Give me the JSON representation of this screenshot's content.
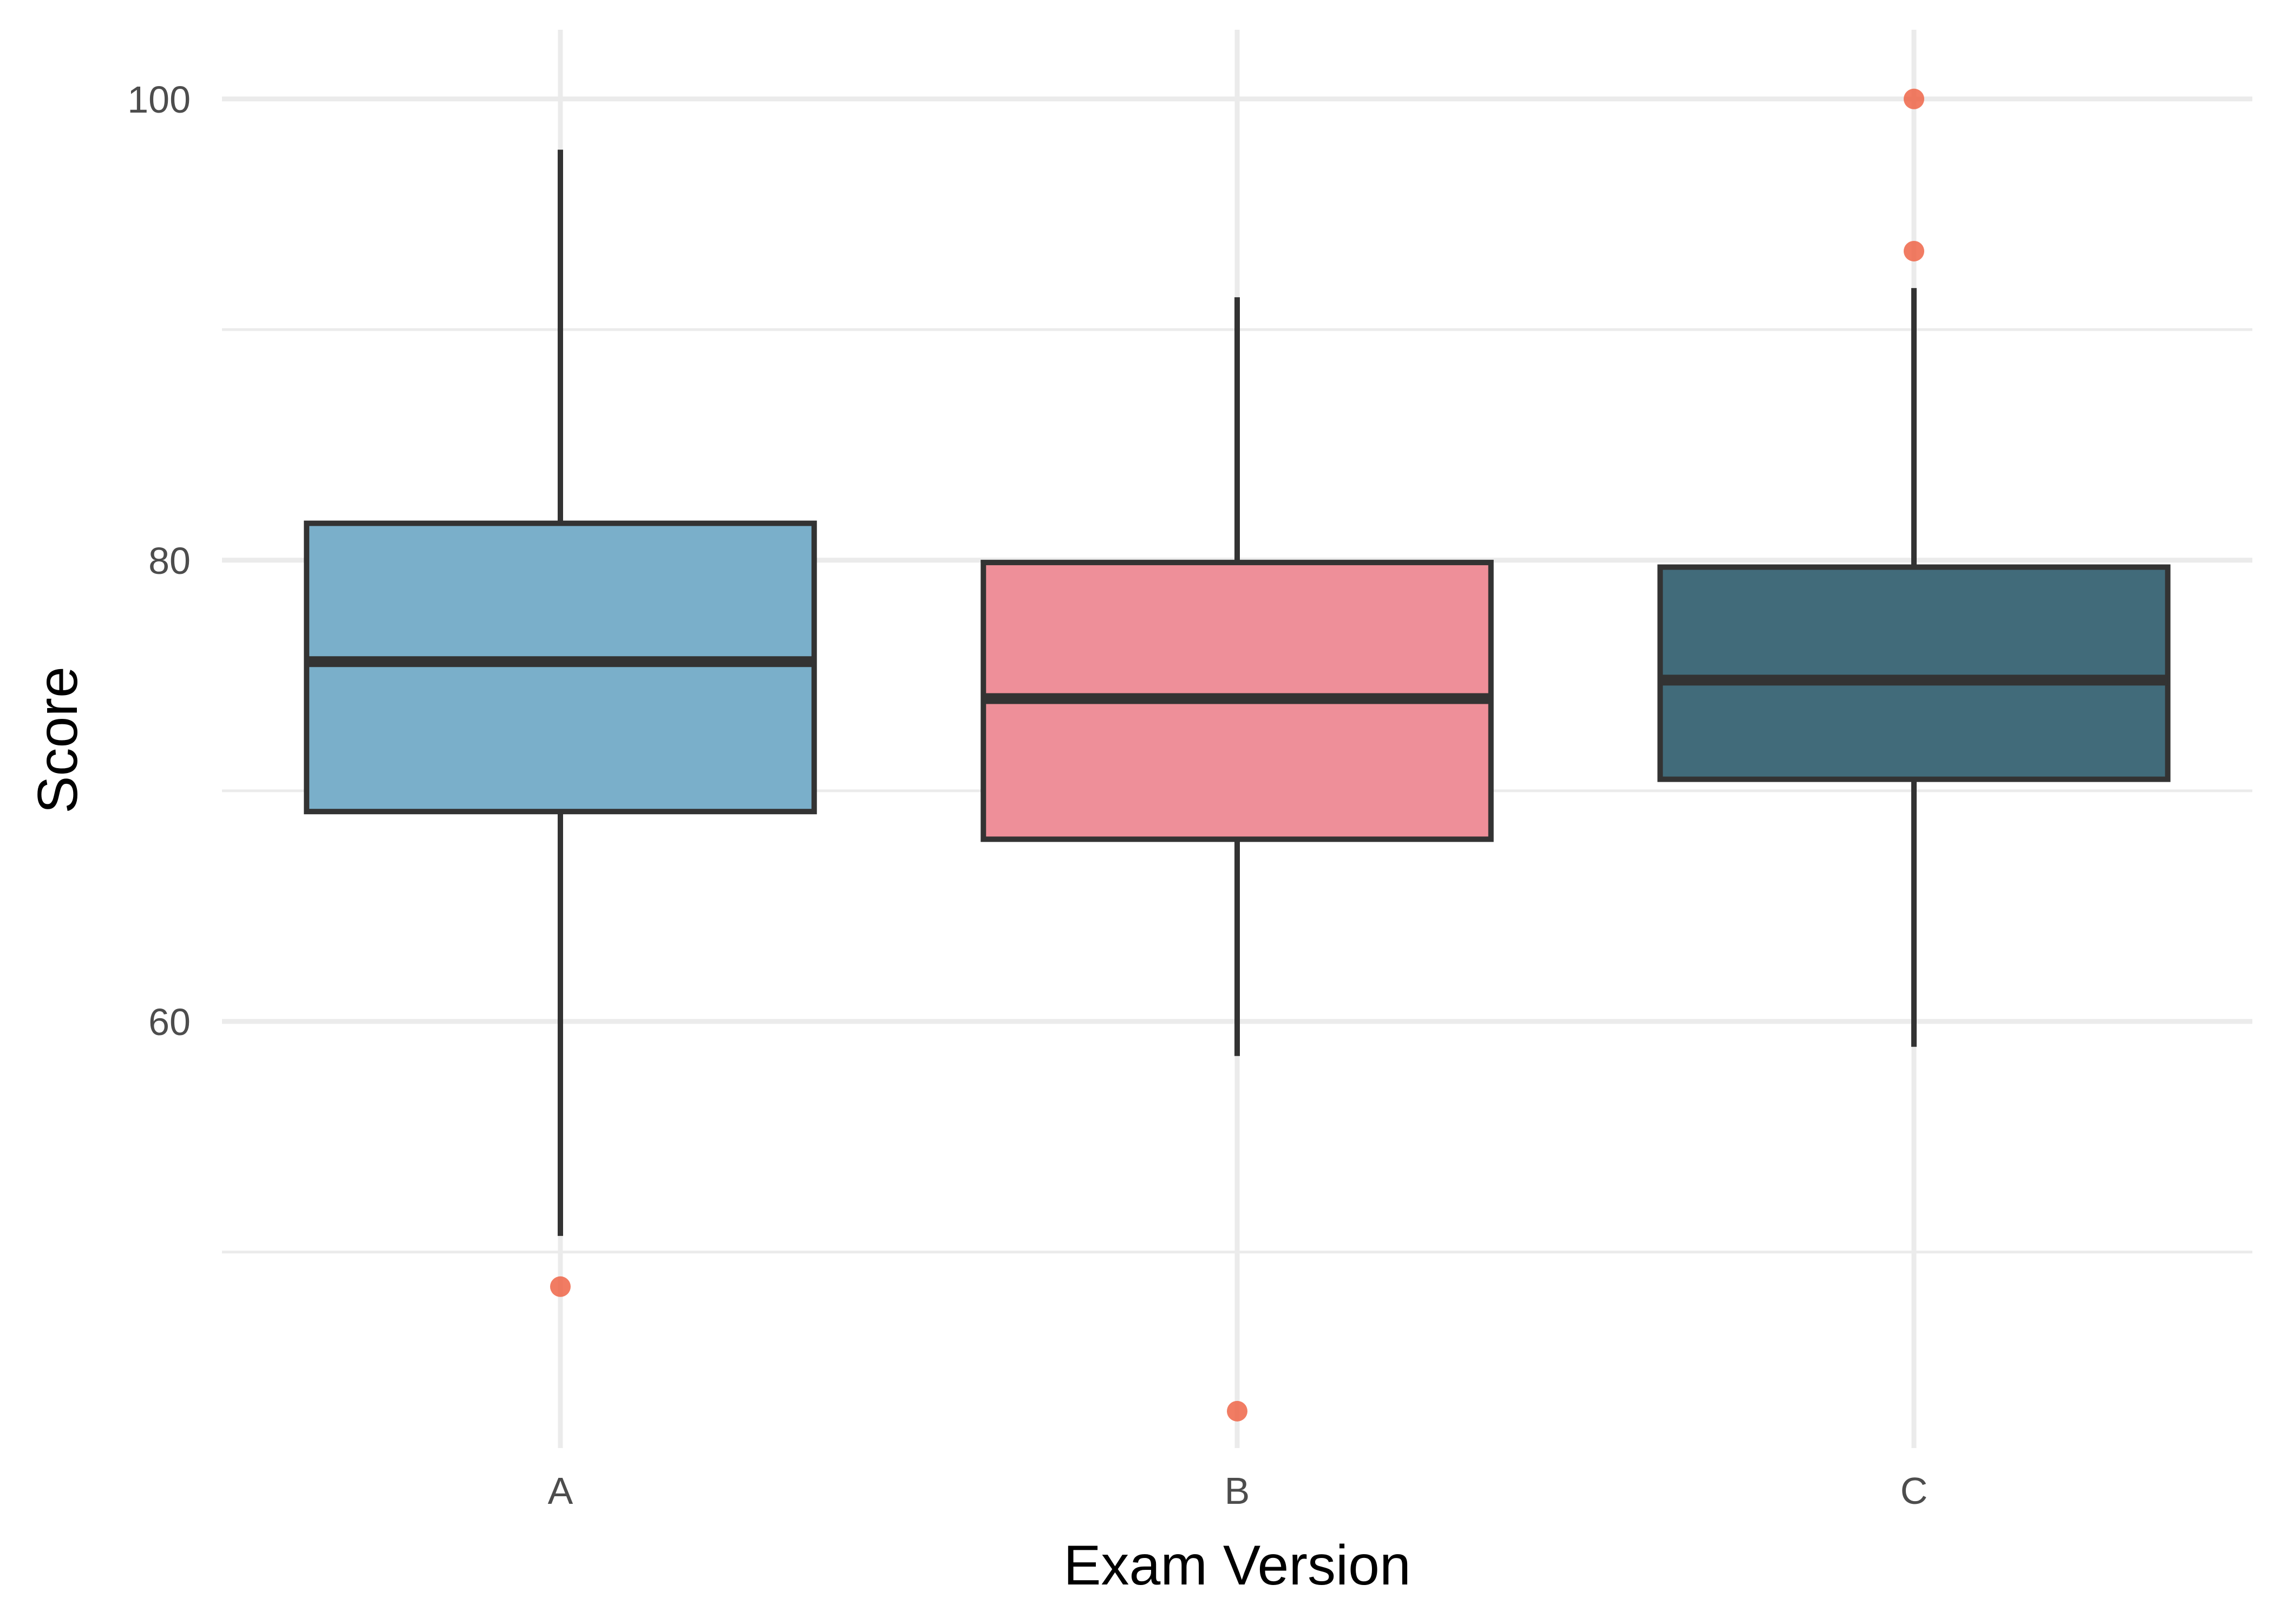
{
  "chart_data": {
    "type": "box",
    "title": "",
    "xlabel": "Exam Version",
    "ylabel": "Score",
    "ylim": [
      41.5,
      103
    ],
    "yticks_major": [
      60,
      80,
      100
    ],
    "yticks_minor": [
      50,
      70,
      90
    ],
    "grid": true,
    "legend": "none",
    "categories": [
      "A",
      "B",
      "C"
    ],
    "boxes": [
      {
        "category": "A",
        "whisker_low": 50.7,
        "q1": 69.1,
        "median": 75.6,
        "q3": 81.6,
        "whisker_high": 97.8,
        "outliers": [
          48.5
        ]
      },
      {
        "category": "B",
        "whisker_low": 58.5,
        "q1": 67.9,
        "median": 74.0,
        "q3": 79.9,
        "whisker_high": 91.4,
        "outliers": [
          43.1
        ]
      },
      {
        "category": "C",
        "whisker_low": 58.9,
        "q1": 70.5,
        "median": 74.8,
        "q3": 79.7,
        "whisker_high": 91.8,
        "outliers": [
          93.4,
          100
        ]
      }
    ],
    "colors": {
      "A": "#7aafca",
      "B": "#ee8f99",
      "C": "#416b7a",
      "outlier": "#ef6548",
      "box_stroke": "#333333",
      "grid": "#ebebeb"
    }
  }
}
